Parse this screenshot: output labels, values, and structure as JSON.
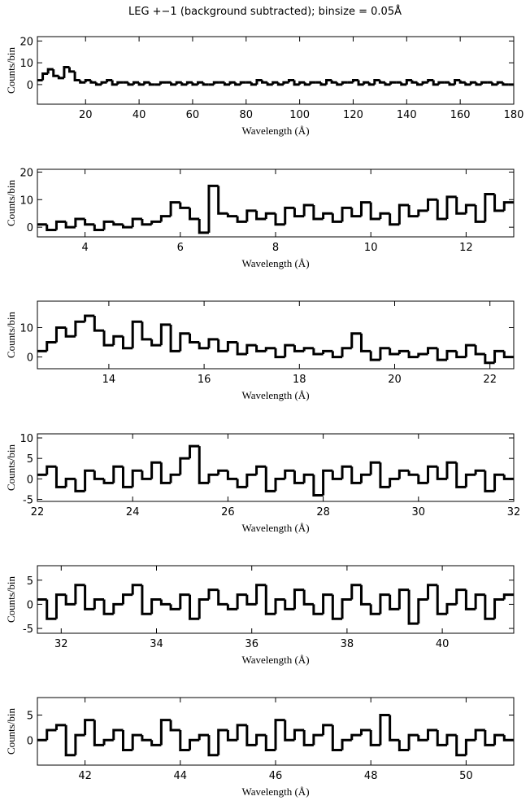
{
  "chart_data": [
    {
      "type": "histogram",
      "title": "LEG +−1 (background subtracted); binsize = 0.05Å",
      "xlabel": "Wavelength (Å)",
      "ylabel": "Counts/bin",
      "color": "#000000",
      "bins": [
        2,
        4,
        6,
        8,
        10,
        12,
        14,
        16,
        18,
        20,
        22,
        24,
        26,
        28,
        30,
        32,
        34,
        36,
        38,
        40,
        42,
        44,
        46,
        48,
        50,
        52,
        54,
        56,
        58,
        60,
        62,
        64,
        66,
        68,
        70,
        72,
        74,
        76,
        78,
        80,
        82,
        84,
        86,
        88,
        90,
        92,
        94,
        96,
        98,
        100,
        102,
        104,
        106,
        108,
        110,
        112,
        114,
        116,
        118,
        120,
        122,
        124,
        126,
        128,
        130,
        132,
        134,
        136,
        138,
        140,
        142,
        144,
        146,
        148,
        150,
        152,
        154,
        156,
        158,
        160,
        162,
        164,
        166,
        168,
        170,
        172,
        174,
        176,
        178,
        180
      ],
      "values": [
        2,
        5,
        7,
        4,
        3,
        8,
        6,
        2,
        1,
        2,
        1,
        0,
        1,
        2,
        0,
        1,
        1,
        0,
        1,
        0,
        1,
        0,
        0,
        1,
        1,
        0,
        1,
        0,
        1,
        0,
        1,
        0,
        0,
        1,
        1,
        0,
        1,
        0,
        1,
        1,
        0,
        2,
        1,
        0,
        1,
        0,
        1,
        2,
        0,
        1,
        0,
        1,
        1,
        0,
        2,
        1,
        0,
        1,
        1,
        2,
        0,
        1,
        0,
        2,
        1,
        0,
        1,
        1,
        0,
        2,
        1,
        0,
        1,
        2,
        0,
        1,
        1,
        0,
        2,
        1,
        0,
        1,
        0,
        1,
        1,
        0,
        1,
        0,
        0
      ],
      "xlim": [
        2,
        180
      ],
      "ylim": [
        -9,
        22
      ],
      "xticks": [
        20,
        40,
        60,
        80,
        100,
        120,
        140,
        160,
        180
      ],
      "yticks": [
        0,
        10,
        20
      ]
    },
    {
      "type": "histogram",
      "xlabel": "Wavelength (Å)",
      "ylabel": "Counts/bin",
      "color": "#000000",
      "bins": [
        3,
        3.2,
        3.4,
        3.6,
        3.8,
        4,
        4.2,
        4.4,
        4.6,
        4.8,
        5,
        5.2,
        5.4,
        5.6,
        5.8,
        6,
        6.2,
        6.4,
        6.6,
        6.8,
        7,
        7.2,
        7.4,
        7.6,
        7.8,
        8,
        8.2,
        8.4,
        8.6,
        8.8,
        9,
        9.2,
        9.4,
        9.6,
        9.8,
        10,
        10.2,
        10.4,
        10.6,
        10.8,
        11,
        11.2,
        11.4,
        11.6,
        11.8,
        12,
        12.2,
        12.4,
        12.6,
        12.8,
        13
      ],
      "values": [
        1,
        -1,
        2,
        0,
        3,
        1,
        -1,
        2,
        1,
        0,
        3,
        1,
        2,
        4,
        9,
        7,
        3,
        -2,
        15,
        5,
        4,
        2,
        6,
        3,
        5,
        1,
        7,
        4,
        8,
        3,
        5,
        2,
        7,
        4,
        9,
        3,
        5,
        1,
        8,
        4,
        6,
        10,
        3,
        11,
        5,
        8,
        2,
        12,
        6,
        9
      ],
      "xlim": [
        3,
        13
      ],
      "ylim": [
        -3.5,
        21
      ],
      "xticks": [
        4,
        6,
        8,
        10,
        12
      ],
      "yticks": [
        0,
        10,
        20
      ]
    },
    {
      "type": "histogram",
      "xlabel": "Wavelength (Å)",
      "ylabel": "Counts/bin",
      "color": "#000000",
      "bins": [
        12.5,
        12.7,
        12.9,
        13.1,
        13.3,
        13.5,
        13.7,
        13.9,
        14.1,
        14.3,
        14.5,
        14.7,
        14.9,
        15.1,
        15.3,
        15.5,
        15.7,
        15.9,
        16.1,
        16.3,
        16.5,
        16.7,
        16.9,
        17.1,
        17.3,
        17.5,
        17.7,
        17.9,
        18.1,
        18.3,
        18.5,
        18.7,
        18.9,
        19.1,
        19.3,
        19.5,
        19.7,
        19.9,
        20.1,
        20.3,
        20.5,
        20.7,
        20.9,
        21.1,
        21.3,
        21.5,
        21.7,
        21.9,
        22.1,
        22.3,
        22.5
      ],
      "values": [
        2,
        5,
        10,
        7,
        12,
        14,
        9,
        4,
        7,
        3,
        12,
        6,
        4,
        11,
        2,
        8,
        5,
        3,
        6,
        2,
        5,
        1,
        4,
        2,
        3,
        0,
        4,
        2,
        3,
        1,
        2,
        0,
        3,
        8,
        2,
        -1,
        3,
        1,
        2,
        0,
        1,
        3,
        -1,
        2,
        0,
        4,
        1,
        -2,
        2,
        0
      ],
      "xlim": [
        12.5,
        22.5
      ],
      "ylim": [
        -4,
        19
      ],
      "xticks": [
        14,
        16,
        18,
        20,
        22
      ],
      "yticks": [
        0,
        10
      ]
    },
    {
      "type": "histogram",
      "xlabel": "Wavelength (Å)",
      "ylabel": "Counts/bin",
      "color": "#000000",
      "bins": [
        22,
        22.2,
        22.4,
        22.6,
        22.8,
        23,
        23.2,
        23.4,
        23.6,
        23.8,
        24,
        24.2,
        24.4,
        24.6,
        24.8,
        25,
        25.2,
        25.4,
        25.6,
        25.8,
        26,
        26.2,
        26.4,
        26.6,
        26.8,
        27,
        27.2,
        27.4,
        27.6,
        27.8,
        28,
        28.2,
        28.4,
        28.6,
        28.8,
        29,
        29.2,
        29.4,
        29.6,
        29.8,
        30,
        30.2,
        30.4,
        30.6,
        30.8,
        31,
        31.2,
        31.4,
        31.6,
        31.8,
        32
      ],
      "values": [
        1,
        3,
        -2,
        0,
        -3,
        2,
        0,
        -1,
        3,
        -2,
        2,
        0,
        4,
        -1,
        1,
        5,
        8,
        -1,
        1,
        2,
        0,
        -2,
        1,
        3,
        -3,
        0,
        2,
        -1,
        1,
        -4,
        2,
        0,
        3,
        -1,
        1,
        4,
        -2,
        0,
        2,
        1,
        -1,
        3,
        0,
        4,
        -2,
        1,
        2,
        -3,
        1,
        0
      ],
      "xlim": [
        22,
        32
      ],
      "ylim": [
        -5.5,
        11
      ],
      "xticks": [
        22,
        24,
        26,
        28,
        30,
        32
      ],
      "yticks": [
        -5,
        0,
        5,
        10
      ]
    },
    {
      "type": "histogram",
      "xlabel": "Wavelength (Å)",
      "ylabel": "Counts/bin",
      "color": "#000000",
      "bins": [
        31.5,
        31.7,
        31.9,
        32.1,
        32.3,
        32.5,
        32.7,
        32.9,
        33.1,
        33.3,
        33.5,
        33.7,
        33.9,
        34.1,
        34.3,
        34.5,
        34.7,
        34.9,
        35.1,
        35.3,
        35.5,
        35.7,
        35.9,
        36.1,
        36.3,
        36.5,
        36.7,
        36.9,
        37.1,
        37.3,
        37.5,
        37.7,
        37.9,
        38.1,
        38.3,
        38.5,
        38.7,
        38.9,
        39.1,
        39.3,
        39.5,
        39.7,
        39.9,
        40.1,
        40.3,
        40.5,
        40.7,
        40.9,
        41.1,
        41.3,
        41.5
      ],
      "values": [
        1,
        -3,
        2,
        0,
        4,
        -1,
        1,
        -2,
        0,
        2,
        4,
        -2,
        1,
        0,
        -1,
        2,
        -3,
        1,
        3,
        0,
        -1,
        2,
        0,
        4,
        -2,
        1,
        -1,
        3,
        0,
        -2,
        2,
        -3,
        1,
        4,
        0,
        -2,
        2,
        -1,
        3,
        -4,
        1,
        4,
        -2,
        0,
        3,
        -1,
        2,
        -3,
        1,
        2
      ],
      "xlim": [
        31.5,
        41.5
      ],
      "ylim": [
        -6,
        8
      ],
      "xticks": [
        32,
        34,
        36,
        38,
        40
      ],
      "yticks": [
        -5,
        0,
        5
      ]
    },
    {
      "type": "histogram",
      "xlabel": "Wavelength (Å)",
      "ylabel": "Counts/bin",
      "color": "#000000",
      "bins": [
        41,
        41.2,
        41.4,
        41.6,
        41.8,
        42,
        42.2,
        42.4,
        42.6,
        42.8,
        43,
        43.2,
        43.4,
        43.6,
        43.8,
        44,
        44.2,
        44.4,
        44.6,
        44.8,
        45,
        45.2,
        45.4,
        45.6,
        45.8,
        46,
        46.2,
        46.4,
        46.6,
        46.8,
        47,
        47.2,
        47.4,
        47.6,
        47.8,
        48,
        48.2,
        48.4,
        48.6,
        48.8,
        49,
        49.2,
        49.4,
        49.6,
        49.8,
        50,
        50.2,
        50.4,
        50.6,
        50.8,
        51
      ],
      "values": [
        0,
        2,
        3,
        -3,
        1,
        4,
        -1,
        0,
        2,
        -2,
        1,
        0,
        -1,
        4,
        2,
        -2,
        0,
        1,
        -3,
        2,
        0,
        3,
        -1,
        1,
        -2,
        4,
        0,
        2,
        -1,
        1,
        3,
        -2,
        0,
        1,
        2,
        -1,
        5,
        0,
        -2,
        1,
        0,
        2,
        -1,
        1,
        -3,
        0,
        2,
        -1,
        1,
        0
      ],
      "xlim": [
        41,
        51
      ],
      "ylim": [
        -5,
        8.5
      ],
      "xticks": [
        42,
        44,
        46,
        48,
        50
      ],
      "yticks": [
        0,
        5
      ]
    }
  ]
}
